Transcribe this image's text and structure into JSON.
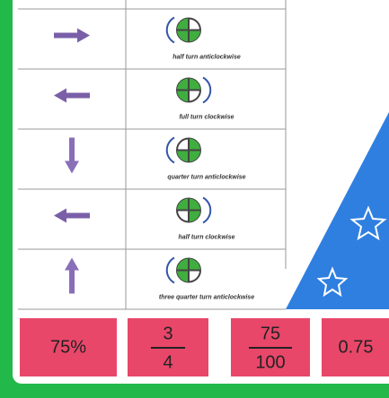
{
  "rows": [
    {
      "caption": "half turn anticlockwise"
    },
    {
      "caption": "full turn clockwise"
    },
    {
      "caption": "quarter turn anticlockwise"
    },
    {
      "caption": "half turn clockwise"
    },
    {
      "caption": "three quarter turn anticlockwise"
    }
  ],
  "answers": {
    "percent": "75%",
    "fraction1": {
      "numerator": "3",
      "denominator": "4"
    },
    "fraction2": {
      "numerator": "75",
      "denominator": "100"
    },
    "decimal": "0.75"
  }
}
